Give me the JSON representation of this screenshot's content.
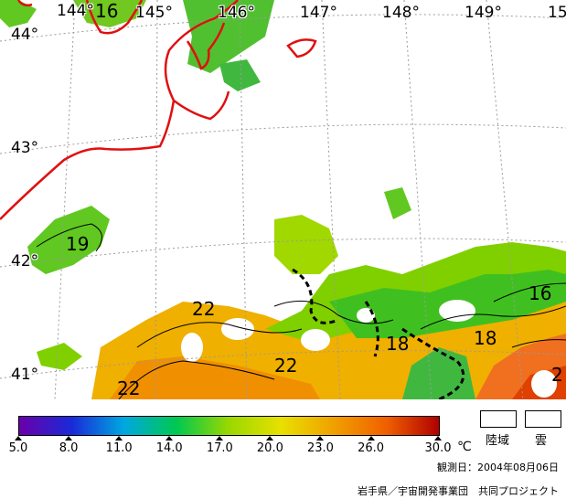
{
  "map": {
    "longitude_labels": [
      "144°",
      "145°",
      "146°",
      "147°",
      "148°",
      "149°",
      "15"
    ],
    "latitude_labels": [
      "44°",
      "43°",
      "42°",
      "41°"
    ],
    "contour_labels": [
      "16",
      "19",
      "22",
      "22",
      "22",
      "18",
      "18",
      "16",
      "2"
    ],
    "colors": {
      "coastline": "#e01010",
      "graticule": "#9a9a9a",
      "cloud_land": "#ffffff"
    }
  },
  "legend": {
    "gradient_stops": [
      "#6a00aa",
      "#1a2ad8",
      "#00a8e0",
      "#00c850",
      "#9ad800",
      "#e8e000",
      "#f0a000",
      "#f06000",
      "#b00000"
    ],
    "ticks": [
      "5.0",
      "8.0",
      "11.0",
      "14.0",
      "17.0",
      "20.0",
      "23.0",
      "26.0",
      "30.0"
    ],
    "unit": "℃",
    "land_label": "陸域",
    "cloud_label": "雲"
  },
  "observation_date": "観測日：2004年08月06日",
  "credit": "岩手県／宇宙開発事業団　共同プロジェクト"
}
